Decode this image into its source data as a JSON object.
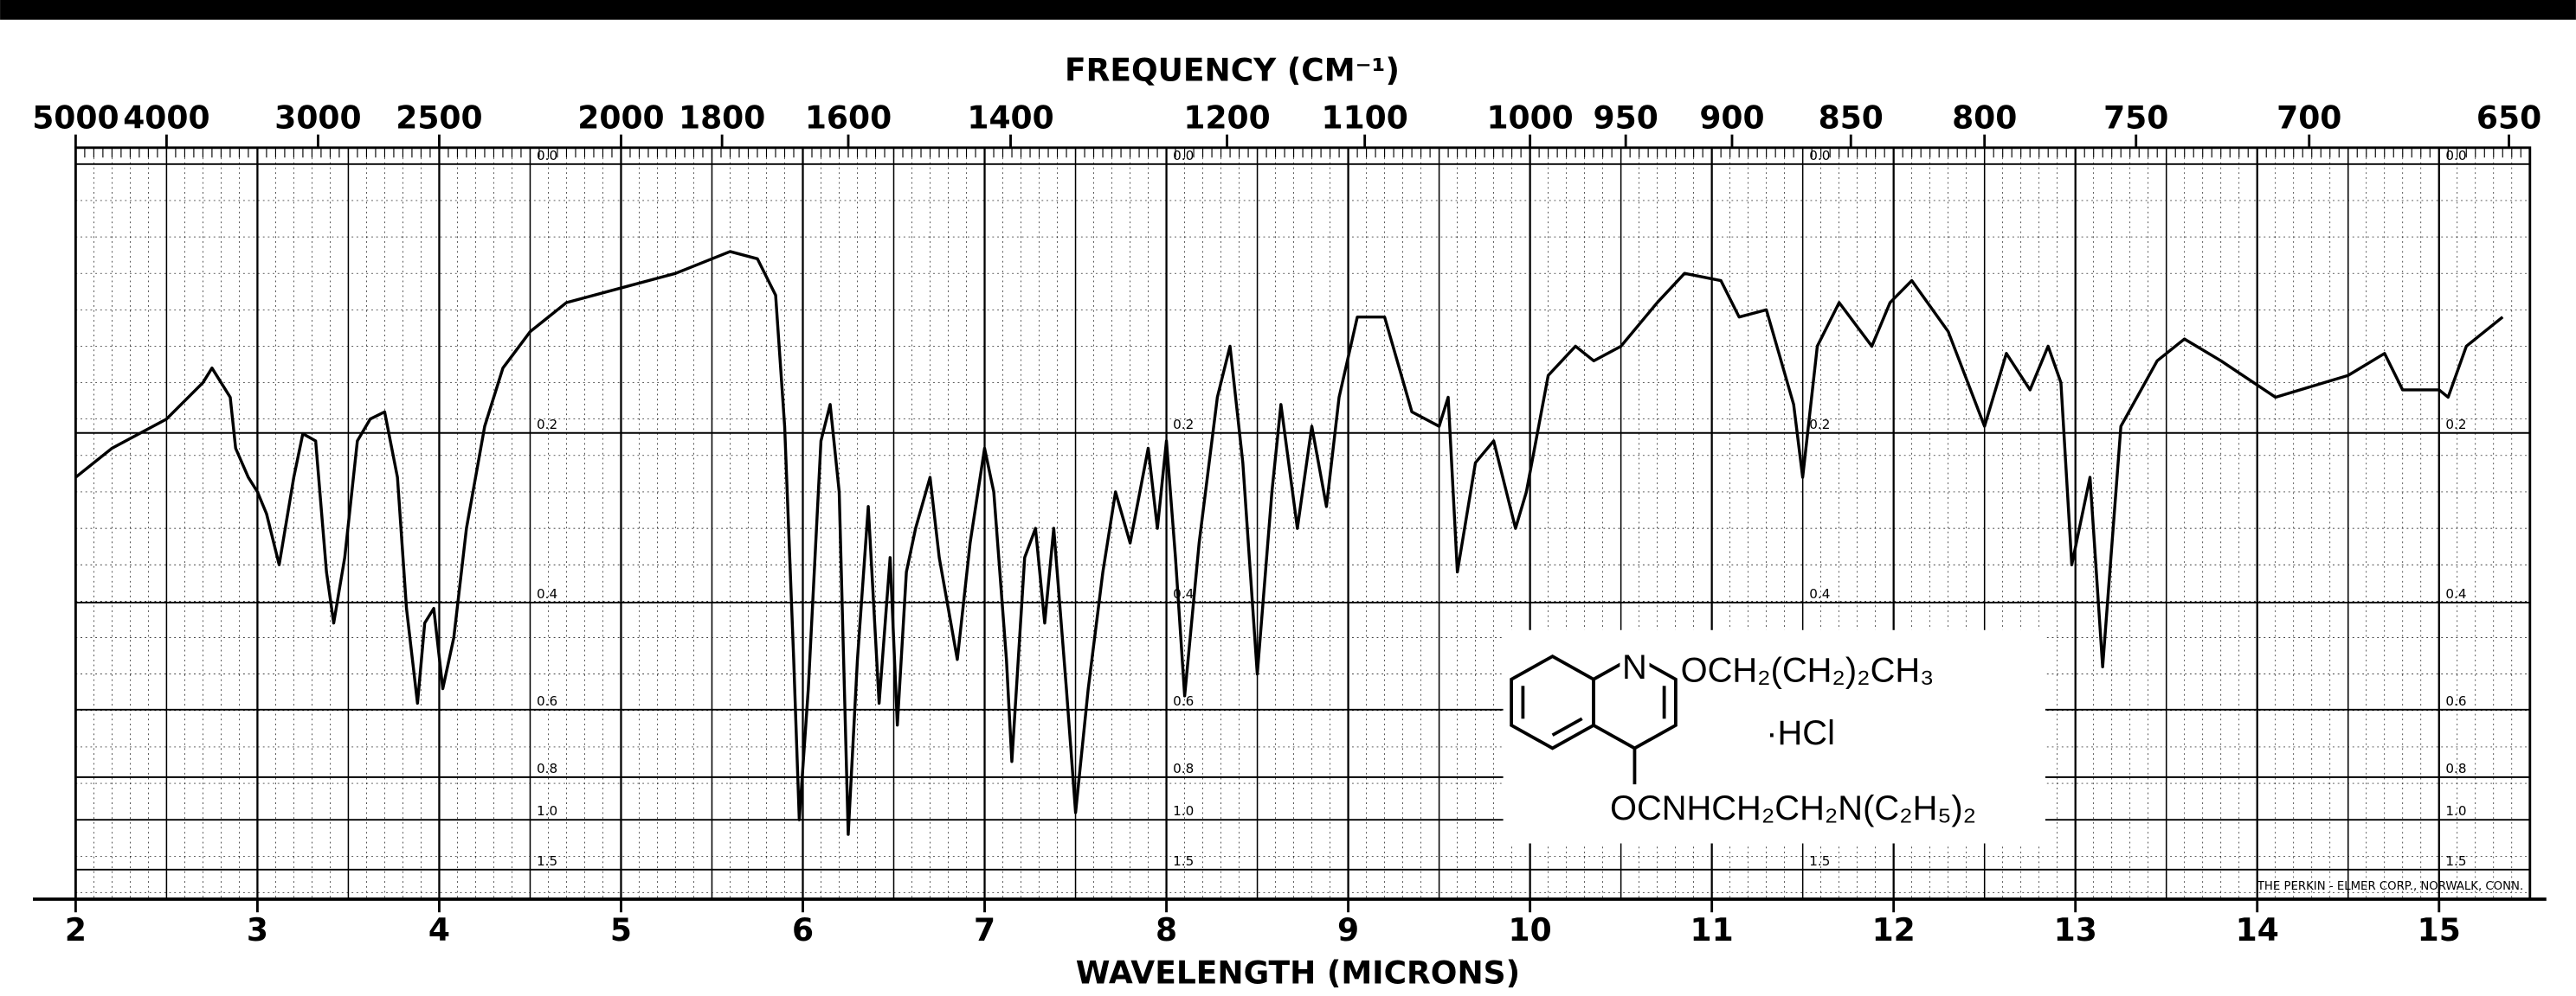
{
  "chart_data": {
    "type": "line",
    "x2label": "FREQUENCY (CM⁻¹)",
    "xlabel": "WAVELENGTH (MICRONS)",
    "xlim": [
      2,
      15.5
    ],
    "xticks": [
      2,
      3,
      4,
      5,
      6,
      7,
      8,
      9,
      10,
      11,
      12,
      13,
      14,
      15
    ],
    "x2ticks": [
      5000,
      4000,
      3000,
      2500,
      2000,
      1800,
      1600,
      1400,
      1200,
      1100,
      1000,
      950,
      900,
      850,
      800,
      750,
      700,
      650
    ],
    "ylim": [
      0,
      100
    ],
    "y2ticks": [
      {
        "value": 0,
        "label": "0.0"
      },
      0.2,
      0.4,
      0.6,
      0.8,
      {
        "value": 1,
        "label": "1.0"
      },
      1.5
    ],
    "color": "#000000",
    "x": [
      2.0,
      2.2,
      2.5,
      2.7,
      2.75,
      2.85,
      2.88,
      2.95,
      3.0,
      3.05,
      3.12,
      3.2,
      3.25,
      3.32,
      3.38,
      3.42,
      3.48,
      3.55,
      3.62,
      3.7,
      3.77,
      3.82,
      3.88,
      3.92,
      3.97,
      4.02,
      4.08,
      4.15,
      4.25,
      4.35,
      4.5,
      4.7,
      5.0,
      5.3,
      5.6,
      5.75,
      5.85,
      5.9,
      5.95,
      5.98,
      6.03,
      6.1,
      6.15,
      6.2,
      6.25,
      6.3,
      6.36,
      6.42,
      6.48,
      6.52,
      6.57,
      6.62,
      6.7,
      6.75,
      6.8,
      6.85,
      6.92,
      7.0,
      7.05,
      7.12,
      7.15,
      7.22,
      7.28,
      7.33,
      7.38,
      7.45,
      7.5,
      7.57,
      7.65,
      7.72,
      7.8,
      7.9,
      7.95,
      8.0,
      8.05,
      8.1,
      8.18,
      8.28,
      8.35,
      8.42,
      8.5,
      8.58,
      8.63,
      8.72,
      8.8,
      8.88,
      8.95,
      9.05,
      9.2,
      9.35,
      9.5,
      9.55,
      9.6,
      9.7,
      9.8,
      9.92,
      9.98,
      10.1,
      10.25,
      10.35,
      10.5,
      10.7,
      10.85,
      11.05,
      11.15,
      11.3,
      11.45,
      11.5,
      11.58,
      11.7,
      11.88,
      11.98,
      12.1,
      12.3,
      12.5,
      12.62,
      12.75,
      12.85,
      12.92,
      12.98,
      13.08,
      13.15,
      13.25,
      13.45,
      13.6,
      13.8,
      14.1,
      14.5,
      14.7,
      14.8,
      15.0,
      15.05,
      15.15,
      15.35
    ],
    "values": [
      57,
      61,
      65,
      70,
      72,
      68,
      61,
      57,
      55,
      52,
      45,
      57,
      63,
      62,
      44,
      37,
      46,
      62,
      65,
      66,
      57,
      39,
      26,
      37,
      39,
      28,
      35,
      50,
      64,
      72,
      77,
      81,
      83,
      85,
      88,
      87,
      82,
      64,
      32,
      10,
      28,
      62,
      67,
      55,
      8,
      32,
      53,
      26,
      46,
      23,
      44,
      50,
      57,
      46,
      39,
      32,
      48,
      61,
      55,
      32,
      18,
      46,
      50,
      37,
      50,
      28,
      11,
      28,
      44,
      55,
      48,
      61,
      50,
      62,
      46,
      27,
      48,
      68,
      75,
      59,
      30,
      55,
      67,
      50,
      64,
      53,
      68,
      79,
      79,
      66,
      64,
      68,
      44,
      59,
      62,
      50,
      55,
      71,
      75,
      73,
      75,
      81,
      85,
      84,
      79,
      80,
      67,
      57,
      75,
      81,
      75,
      81,
      84,
      77,
      64,
      74,
      69,
      75,
      70,
      45,
      57,
      31,
      64,
      73,
      76,
      73,
      68,
      71,
      74,
      69,
      69,
      68,
      75,
      79
    ]
  },
  "structure": {
    "nitrogen": "N",
    "substituent": "OCH₂(CH₂)₂CH₃",
    "salt": "·HCl",
    "amide": "OCNHCH₂CH₂N(C₂H₅)₂"
  },
  "footer": "THE PERKIN - ELMER CORP., NORWALK, CONN."
}
